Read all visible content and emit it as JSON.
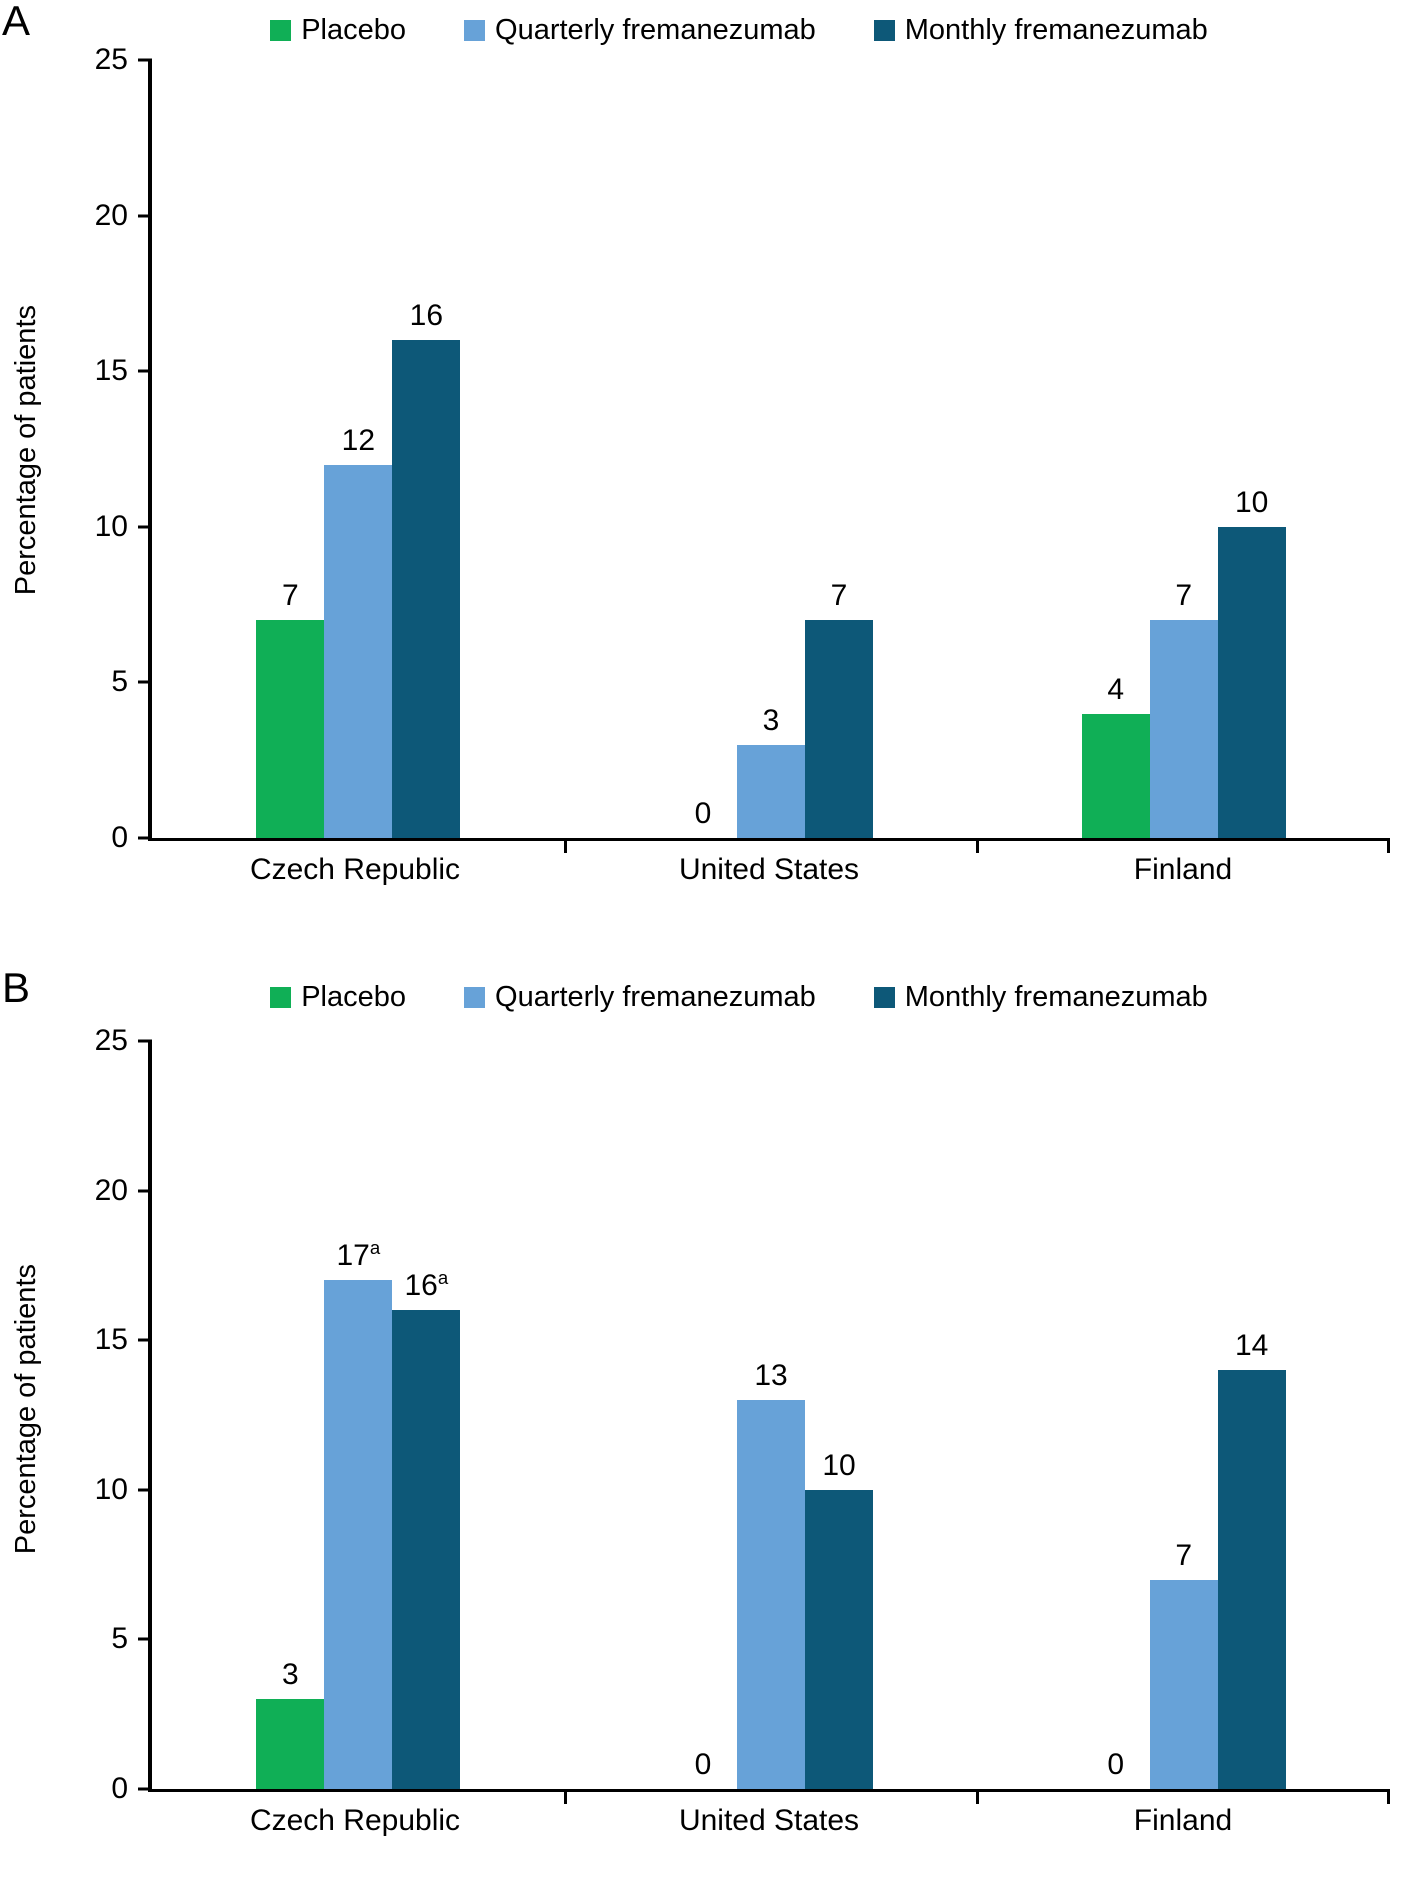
{
  "chart_data": [
    {
      "type": "bar",
      "panel_label": "A",
      "ylabel": "Percentage of patients",
      "ylim": [
        0,
        25
      ],
      "yticks": [
        25,
        20,
        15,
        10,
        5,
        0
      ],
      "grid": false,
      "legend_position": "top",
      "categories": [
        "Czech Republic",
        "United States",
        "Finland"
      ],
      "series": [
        {
          "name": "Placebo",
          "color": "#10AF56",
          "values": [
            7,
            0,
            4
          ],
          "labels": [
            "7",
            "0",
            "4"
          ],
          "label_sups": [
            "",
            "",
            ""
          ]
        },
        {
          "name": "Quarterly fremanezumab",
          "color": "#67A2D8",
          "values": [
            12,
            3,
            7
          ],
          "labels": [
            "12",
            "3",
            "7"
          ],
          "label_sups": [
            "",
            "",
            ""
          ]
        },
        {
          "name": "Monthly fremanezumab",
          "color": "#0D5878",
          "values": [
            16,
            7,
            10
          ],
          "labels": [
            "16",
            "7",
            "10"
          ],
          "label_sups": [
            "",
            "",
            ""
          ]
        }
      ]
    },
    {
      "type": "bar",
      "panel_label": "B",
      "ylabel": "Percentage of patients",
      "ylim": [
        0,
        25
      ],
      "yticks": [
        25,
        20,
        15,
        10,
        5,
        0
      ],
      "grid": false,
      "legend_position": "top",
      "categories": [
        "Czech Republic",
        "United States",
        "Finland"
      ],
      "series": [
        {
          "name": "Placebo",
          "color": "#10AF56",
          "values": [
            3,
            0,
            0
          ],
          "labels": [
            "3",
            "0",
            "0"
          ],
          "label_sups": [
            "",
            "",
            ""
          ]
        },
        {
          "name": "Quarterly fremanezumab",
          "color": "#67A2D8",
          "values": [
            17,
            13,
            7
          ],
          "labels": [
            "17",
            "13",
            "7"
          ],
          "label_sups": [
            "a",
            "",
            ""
          ]
        },
        {
          "name": "Monthly fremanezumab",
          "color": "#0D5878",
          "values": [
            16,
            10,
            14
          ],
          "labels": [
            "16",
            "10",
            "14"
          ],
          "label_sups": [
            "a",
            "",
            ""
          ]
        }
      ]
    }
  ]
}
